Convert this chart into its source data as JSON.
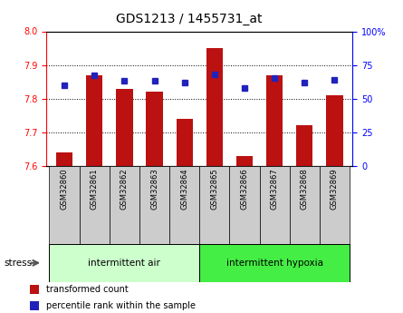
{
  "title": "GDS1213 / 1455731_at",
  "samples": [
    "GSM32860",
    "GSM32861",
    "GSM32862",
    "GSM32863",
    "GSM32864",
    "GSM32865",
    "GSM32866",
    "GSM32867",
    "GSM32868",
    "GSM32869"
  ],
  "bar_values": [
    7.64,
    7.87,
    7.83,
    7.82,
    7.74,
    7.95,
    7.63,
    7.87,
    7.72,
    7.81
  ],
  "dot_values": [
    60,
    67,
    63,
    63,
    62,
    68,
    58,
    65,
    62,
    64
  ],
  "ylim_left": [
    7.6,
    8.0
  ],
  "ylim_right": [
    0,
    100
  ],
  "yticks_left": [
    7.6,
    7.7,
    7.8,
    7.9,
    8.0
  ],
  "yticks_right": [
    0,
    25,
    50,
    75,
    100
  ],
  "bar_color": "#BB1111",
  "dot_color": "#2222BB",
  "bar_bottom": 7.6,
  "group1_label": "intermittent air",
  "group2_label": "intermittent hypoxia",
  "group1_indices": [
    0,
    1,
    2,
    3,
    4
  ],
  "group2_indices": [
    5,
    6,
    7,
    8,
    9
  ],
  "stress_label": "stress",
  "legend_bar_label": "transformed count",
  "legend_dot_label": "percentile rank within the sample",
  "group1_bg_color": "#ccffcc",
  "group2_bg_color": "#44ee44",
  "tick_label_bg": "#cccccc",
  "title_fontsize": 10,
  "tick_fontsize": 7,
  "label_fontsize": 7.5
}
